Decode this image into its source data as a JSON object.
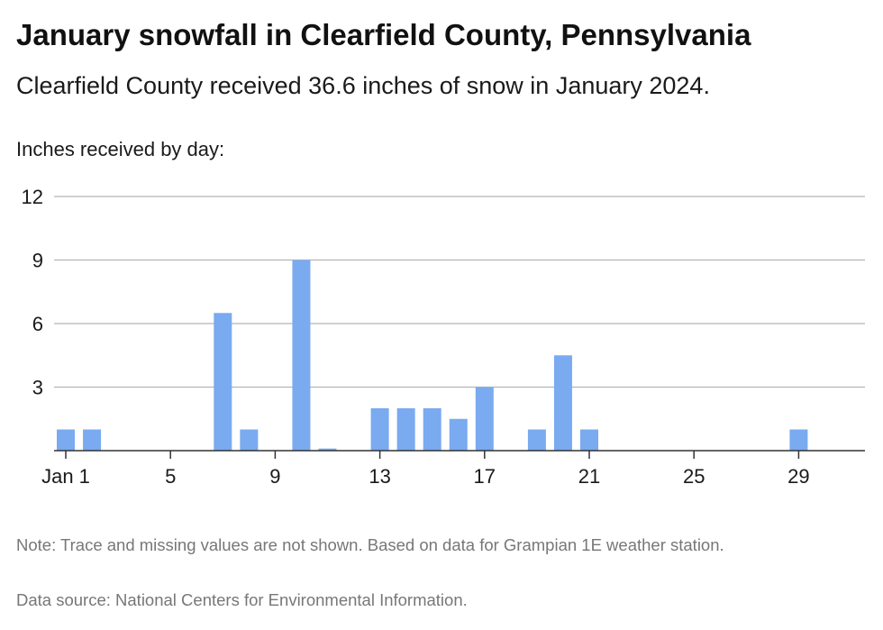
{
  "title": "January snowfall in Clearfield County, Pennsylvania",
  "subtitle": "Clearfield County received 36.6 inches of snow in January 2024.",
  "note": "Note: Trace and missing values are not shown. Based on data for Grampian 1E weather station.",
  "source": "Data source: National Centers for Environmental Information.",
  "colors": {
    "bar": "#7aaaf0",
    "grid": "#b5b5b5",
    "axis": "#333333"
  },
  "chart_data": {
    "type": "bar",
    "title": "January snowfall in Clearfield County, Pennsylvania",
    "ylabel": "Inches received by day:",
    "xlabel": "",
    "x": [
      1,
      2,
      3,
      4,
      5,
      6,
      7,
      8,
      9,
      10,
      11,
      12,
      13,
      14,
      15,
      16,
      17,
      18,
      19,
      20,
      21,
      22,
      23,
      24,
      25,
      26,
      27,
      28,
      29,
      30,
      31
    ],
    "values": [
      1.0,
      1.0,
      0,
      0,
      0,
      0,
      6.5,
      1.0,
      0,
      9.0,
      0.1,
      0,
      2.0,
      2.0,
      2.0,
      1.5,
      3.0,
      0,
      1.0,
      4.5,
      1.0,
      0,
      0,
      0,
      0,
      0,
      0,
      0,
      1.0,
      0,
      0
    ],
    "ylim": [
      0,
      12
    ],
    "yticks": [
      3,
      6,
      9,
      12
    ],
    "xticks": [
      {
        "day": 1,
        "label": "Jan 1"
      },
      {
        "day": 5,
        "label": "5"
      },
      {
        "day": 9,
        "label": "9"
      },
      {
        "day": 13,
        "label": "13"
      },
      {
        "day": 17,
        "label": "17"
      },
      {
        "day": 21,
        "label": "21"
      },
      {
        "day": 25,
        "label": "25"
      },
      {
        "day": 29,
        "label": "29"
      }
    ],
    "grid": true,
    "legend": "none"
  }
}
